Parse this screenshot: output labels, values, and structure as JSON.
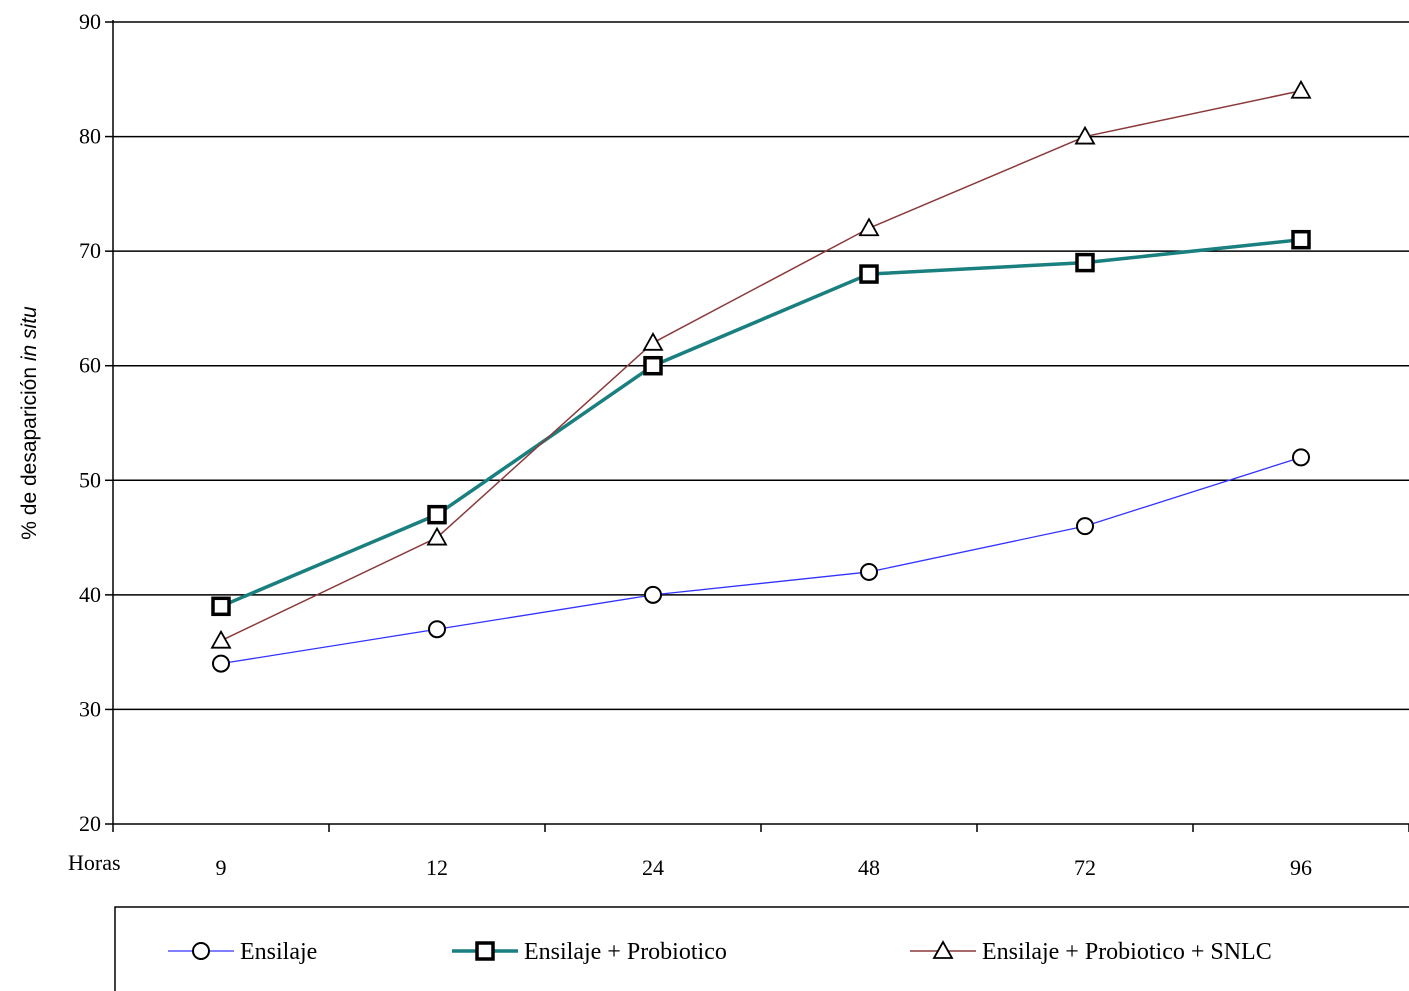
{
  "chart_data": {
    "type": "line",
    "title": "",
    "xlabel": "Horas",
    "ylabel_main": "% de desaparición ",
    "ylabel_italic": "in situ",
    "categories": [
      "9",
      "12",
      "24",
      "48",
      "72",
      "96"
    ],
    "ylim": [
      20,
      90
    ],
    "yticks": [
      20,
      30,
      40,
      50,
      60,
      70,
      80,
      90
    ],
    "grid": "horizontal",
    "legend_position": "bottom",
    "series": [
      {
        "name": "Ensilaje",
        "values": [
          34,
          37,
          40,
          42,
          46,
          52
        ],
        "color": "#3333ff",
        "marker": "circle-icon"
      },
      {
        "name": "Ensilaje + Probiotico",
        "values": [
          39,
          47,
          60,
          68,
          69,
          71
        ],
        "color": "#1a7f7f",
        "marker": "square-icon"
      },
      {
        "name": "Ensilaje + Probiotico + SNLC",
        "values": [
          36,
          45,
          62,
          72,
          80,
          84
        ],
        "color": "#8b3a3a",
        "marker": "triangle-icon"
      }
    ]
  }
}
